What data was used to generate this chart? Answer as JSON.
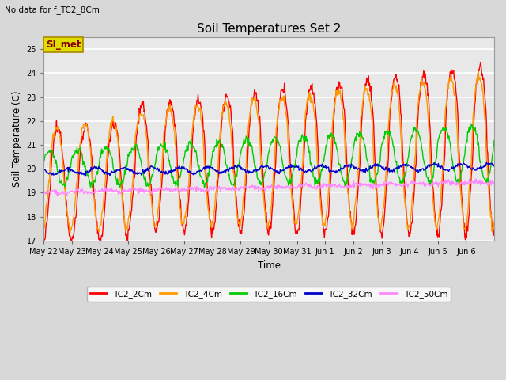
{
  "title": "Soil Temperatures Set 2",
  "note": "No data for f_TC2_8Cm",
  "ylabel": "Soil Temperature (C)",
  "xlabel": "Time",
  "ylim": [
    17.0,
    25.5
  ],
  "yticks": [
    17.0,
    18.0,
    19.0,
    20.0,
    21.0,
    22.0,
    23.0,
    24.0,
    25.0
  ],
  "fig_bg_color": "#d8d8d8",
  "plot_bg_color": "#e8e8e8",
  "legend_labels": [
    "TC2_2Cm",
    "TC2_4Cm",
    "TC2_16Cm",
    "TC2_32Cm",
    "TC2_50Cm"
  ],
  "legend_colors": [
    "#ff0000",
    "#ff9900",
    "#00cc00",
    "#0000cc",
    "#ff88ff"
  ],
  "si_met_box_facecolor": "#dddd00",
  "si_met_box_edgecolor": "#aa8800",
  "si_met_text_color": "#880000",
  "n_days": 16,
  "pts_per_day": 48,
  "day_labels": [
    "May 22",
    "May 23",
    "May 24",
    "May 25",
    "May 26",
    "May 27",
    "May 28",
    "May 29",
    "May 30",
    "May 31",
    "Jun 1",
    "Jun 2",
    "Jun 3",
    "Jun 4",
    "Jun 5",
    "Jun 6"
  ],
  "figsize": [
    6.4,
    4.8
  ],
  "dpi": 100
}
